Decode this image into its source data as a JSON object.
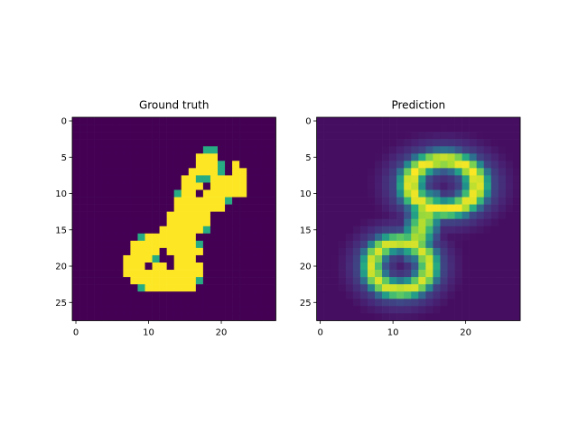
{
  "chart_data": [
    {
      "type": "heatmap",
      "title": "Ground truth",
      "colormap": "viridis",
      "grid": false,
      "rows": 28,
      "cols": 28,
      "xlim": [
        -0.5,
        27.5
      ],
      "ylim": [
        27.5,
        -0.5
      ],
      "xticks": [
        0,
        10,
        20
      ],
      "yticks": [
        0,
        5,
        10,
        15,
        20,
        25
      ],
      "rows_data": [
        "............................",
        "............................",
        "............................",
        "............................",
        "..................gg........",
        ".................yyy........",
        ".................yyyg.y.....",
        "................yyyyg.yy....",
        "...............yyggyyyyy....",
        "...............yyy.yyyyy....",
        "..............gyy.yyyyyy....",
        "..............yyyyyyyg......",
        "..............yyyyyyy.......",
        ".............yyyyyy.........",
        ".............yyyyyy.........",
        "............yyyyyyg.........",
        ".........gyyyyyyy...........",
        "........yyyyyyyyyg..........",
        "........yyyy.yyyyy..........",
        ".......yyyyg..yyy...........",
        ".......yyy.yy.yyyy..........",
        ".......yyyyyyyyyyy..........",
        "........yyyyyyyyyg..........",
        ".........gyyyyyyy...........",
        "............................",
        "............................",
        "............................",
        "............................"
      ]
    },
    {
      "type": "heatmap",
      "title": "Prediction",
      "colormap": "viridis",
      "grid": false,
      "rows": 28,
      "cols": 28,
      "xlim": [
        -0.5,
        27.5
      ],
      "ylim": [
        27.5,
        -0.5
      ],
      "xticks": [
        0,
        10,
        20
      ],
      "yticks": [
        0,
        5,
        10,
        15,
        20,
        25
      ],
      "loops": [
        {
          "cx": 17.0,
          "cy": 8.8,
          "rx": 4.6,
          "ry": 3.4,
          "width": 1.0,
          "weight": 1.0
        },
        {
          "cx": 11.0,
          "cy": 20.0,
          "rx": 3.9,
          "ry": 3.3,
          "width": 1.0,
          "weight": 0.95
        }
      ],
      "stem": {
        "x1": 15.0,
        "y1": 11.8,
        "x2": 13.0,
        "y2": 17.0,
        "width": 1.5,
        "weight": 0.9
      },
      "halo_spread": 1.6,
      "halo_weight": 0.28,
      "background": 0.05
    }
  ]
}
